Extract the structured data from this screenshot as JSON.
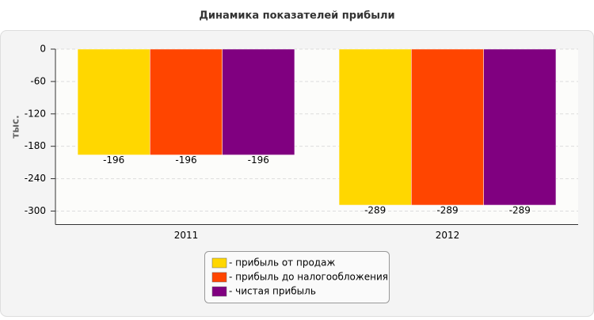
{
  "chart_data": {
    "type": "bar",
    "title": "Динамика показателей прибыли",
    "y_label": "тыс.",
    "categories": [
      "2011",
      "2012"
    ],
    "series": [
      {
        "name": "- прибыль от продаж",
        "color": "#FFD700",
        "values": [
          -196,
          -289
        ]
      },
      {
        "name": "- прибыль до налогообложения",
        "color": "#FF4500",
        "values": [
          -196,
          -289
        ]
      },
      {
        "name": "- чистая прибыль",
        "color": "#800080",
        "values": [
          -196,
          -289
        ]
      }
    ],
    "ylim": [
      -325,
      0
    ],
    "yticks": [
      0,
      -60,
      -120,
      -180,
      -240,
      -300
    ],
    "grid": true
  }
}
